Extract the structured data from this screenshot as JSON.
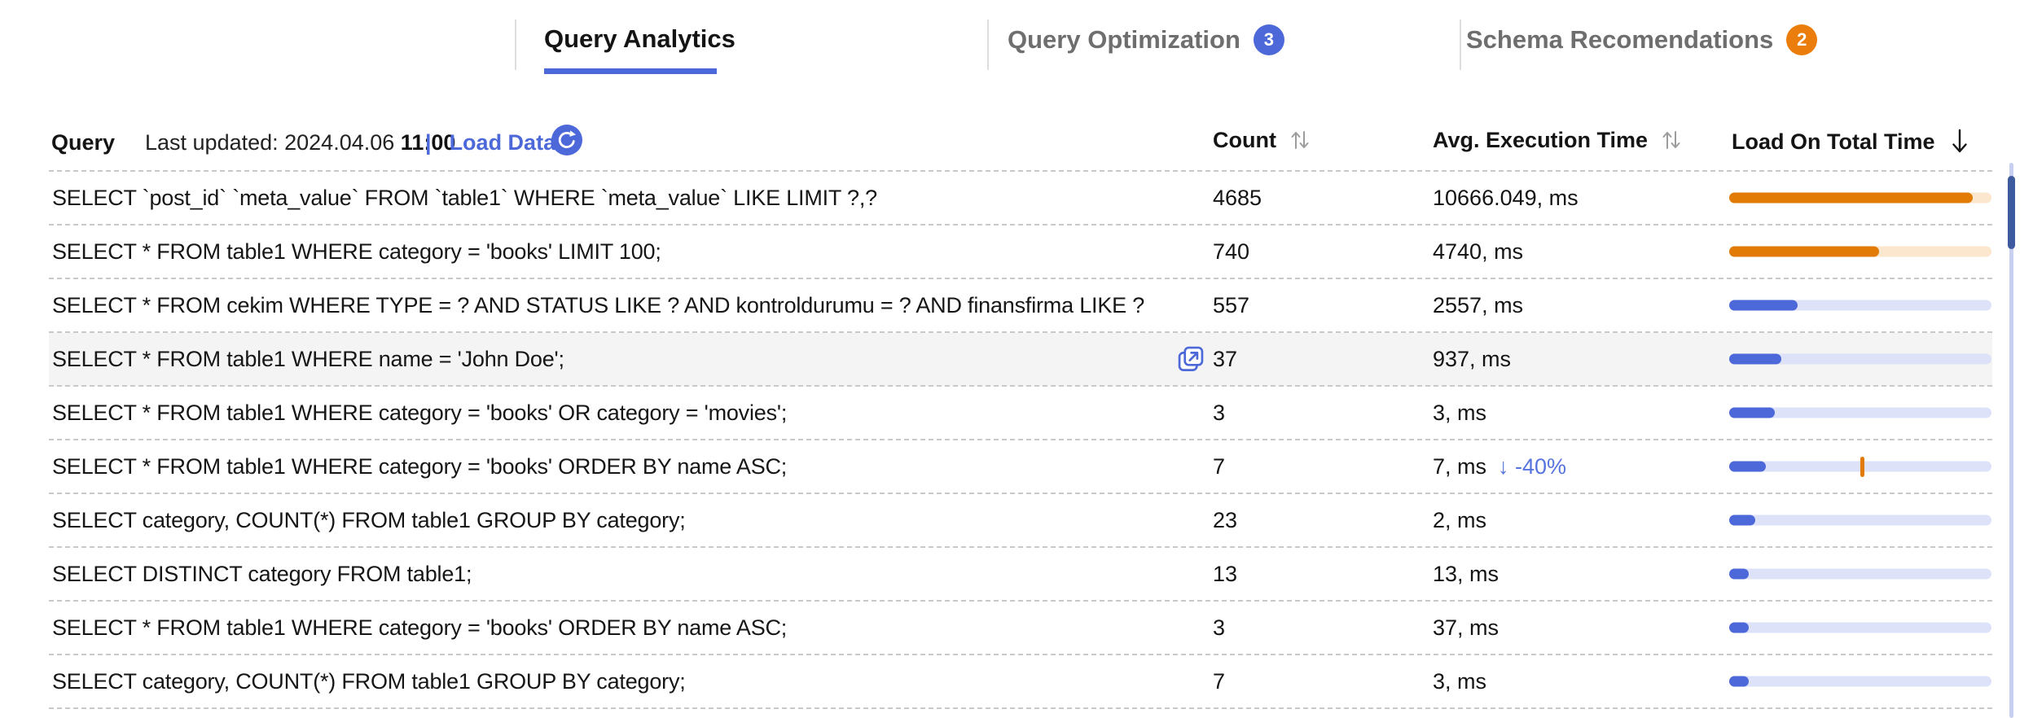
{
  "tabs": [
    {
      "label": "Query Analytics",
      "active": true
    },
    {
      "label": "Query Optimization",
      "badge": "3"
    },
    {
      "label": "Schema Recomendations",
      "badge": "2"
    }
  ],
  "toolbar": {
    "query_label": "Query",
    "last_updated_label": "Last updated: 2024.04.06",
    "last_updated_time": "11:00",
    "divider": "|",
    "load_data_label": "Load Data",
    "refresh_icon": "refresh-icon"
  },
  "columns": {
    "count": "Count",
    "avg_execution_time": "Avg. Execution Time",
    "load_on_total_time": "Load On Total Time",
    "count_sort_icon": "sort-up-down-icon",
    "avg_sort_icon": "sort-up-down-icon",
    "load_sort_icon": "sort-down-icon"
  },
  "rows": [
    {
      "query": "SELECT `post_id` `meta_value` FROM `table1` WHERE `meta_value` LIKE LIMIT ?,?",
      "count": "4685",
      "time": "10666.049, ms",
      "bar": {
        "color": "orange",
        "fill": 93
      }
    },
    {
      "query": "SELECT * FROM table1 WHERE category = 'books' LIMIT 100;",
      "count": "740",
      "time": "4740, ms",
      "bar": {
        "color": "orange",
        "fill": 57
      }
    },
    {
      "query": "SELECT * FROM cekim WHERE TYPE = ? AND STATUS LIKE ? AND kontroldurumu = ? AND finansfirma LIKE ?",
      "count": "557",
      "time": "2557, ms",
      "bar": {
        "color": "blue",
        "fill": 26
      }
    },
    {
      "query": "SELECT * FROM table1 WHERE name = 'John Doe';",
      "count": "37",
      "time": "937, ms",
      "highlighted": true,
      "open_icon": true,
      "bar": {
        "color": "blue",
        "fill": 20
      }
    },
    {
      "query": "SELECT * FROM table1 WHERE category = 'books' OR category = 'movies';",
      "count": "3",
      "time": "3, ms",
      "bar": {
        "color": "blue",
        "fill": 17.5
      }
    },
    {
      "query": "SELECT * FROM table1 WHERE category = 'books' ORDER BY name ASC;",
      "count": "7",
      "time": "7, ms",
      "delta": "↓ -40%",
      "bar": {
        "color": "blue",
        "fill": 14,
        "marker": 50.5
      }
    },
    {
      "query": "SELECT category, COUNT(*) FROM table1 GROUP BY category;",
      "count": "23",
      "time": "2, ms",
      "bar": {
        "color": "blue",
        "fill": 10
      }
    },
    {
      "query": "SELECT DISTINCT category FROM table1;",
      "count": "13",
      "time": "13, ms",
      "bar": {
        "color": "blue",
        "fill": 7.5
      }
    },
    {
      "query": "SELECT * FROM table1 WHERE category = 'books' ORDER BY name ASC;",
      "count": "3",
      "time": "37, ms",
      "bar": {
        "color": "blue",
        "fill": 7.5
      }
    },
    {
      "query": "SELECT category, COUNT(*) FROM table1 GROUP BY category;",
      "count": "7",
      "time": "3, ms",
      "bar": {
        "color": "blue",
        "fill": 7.5
      }
    }
  ],
  "colors": {
    "accent_blue": "#4D68D8",
    "bar_blue": "#4D68D8",
    "bar_blue_track": "#DDE2F8",
    "bar_orange": "#E17B05",
    "bar_orange_track": "#FAE7CE",
    "badge_blue": "#4D68D8",
    "badge_orange": "#EA7D0B",
    "highlight_row": "#F4F4F4",
    "scrollbar_thumb": "#3E5A9E",
    "scrollbar_track": "#C7D0F0"
  }
}
